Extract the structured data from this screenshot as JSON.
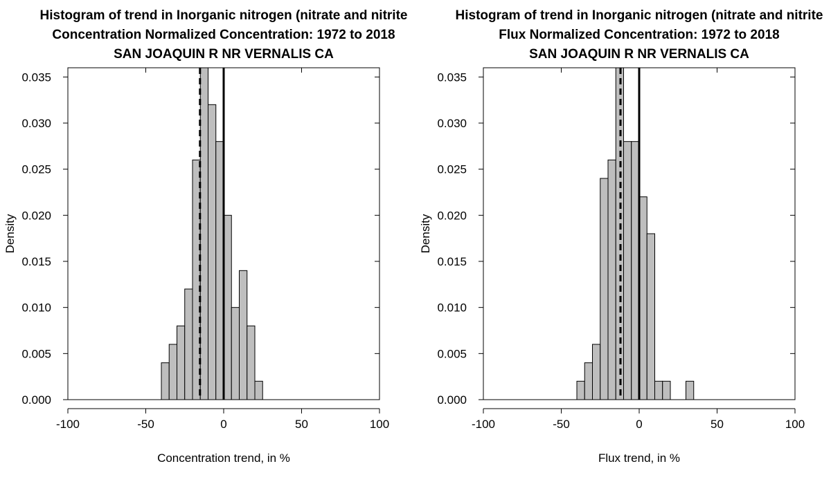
{
  "chart_data": [
    {
      "type": "bar",
      "title_lines": [
        "Histogram of trend in Inorganic nitrogen (nitrate and nitrite",
        "Concentration Normalized Concentration: 1972 to 2018",
        "SAN JOAQUIN R NR VERNALIS CA"
      ],
      "xlabel": "Concentration trend, in %",
      "ylabel": "Density",
      "xlim": [
        -100,
        100
      ],
      "ylim": [
        0,
        0.036
      ],
      "xticks": [
        "-100",
        "-50",
        "0",
        "50",
        "100"
      ],
      "yticks": [
        "0.000",
        "0.005",
        "0.010",
        "0.015",
        "0.020",
        "0.025",
        "0.030",
        "0.035"
      ],
      "bins": [
        {
          "x0": -40,
          "x1": -35,
          "density": 0.004
        },
        {
          "x0": -35,
          "x1": -30,
          "density": 0.006
        },
        {
          "x0": -30,
          "x1": -25,
          "density": 0.008
        },
        {
          "x0": -25,
          "x1": -20,
          "density": 0.012
        },
        {
          "x0": -20,
          "x1": -15,
          "density": 0.026
        },
        {
          "x0": -15,
          "x1": -10,
          "density": 0.038
        },
        {
          "x0": -10,
          "x1": -5,
          "density": 0.032
        },
        {
          "x0": -5,
          "x1": 0,
          "density": 0.028
        },
        {
          "x0": 0,
          "x1": 5,
          "density": 0.02
        },
        {
          "x0": 5,
          "x1": 10,
          "density": 0.01
        },
        {
          "x0": 10,
          "x1": 15,
          "density": 0.014
        },
        {
          "x0": 15,
          "x1": 20,
          "density": 0.008
        },
        {
          "x0": 20,
          "x1": 25,
          "density": 0.002
        }
      ],
      "median_line": -15.2,
      "zero_line": 0,
      "bar_color": "#bebebe"
    },
    {
      "type": "bar",
      "title_lines": [
        "Histogram of trend in Inorganic nitrogen (nitrate and nitrite",
        "Flux Normalized Concentration: 1972 to 2018",
        "SAN JOAQUIN R NR VERNALIS CA"
      ],
      "xlabel": "Flux trend, in %",
      "ylabel": "Density",
      "xlim": [
        -100,
        100
      ],
      "ylim": [
        0,
        0.036
      ],
      "xticks": [
        "-100",
        "-50",
        "0",
        "50",
        "100"
      ],
      "yticks": [
        "0.000",
        "0.005",
        "0.010",
        "0.015",
        "0.020",
        "0.025",
        "0.030",
        "0.035"
      ],
      "bins": [
        {
          "x0": -40,
          "x1": -35,
          "density": 0.002
        },
        {
          "x0": -35,
          "x1": -30,
          "density": 0.004
        },
        {
          "x0": -30,
          "x1": -25,
          "density": 0.006
        },
        {
          "x0": -25,
          "x1": -20,
          "density": 0.024
        },
        {
          "x0": -20,
          "x1": -15,
          "density": 0.026
        },
        {
          "x0": -15,
          "x1": -10,
          "density": 0.038
        },
        {
          "x0": -10,
          "x1": -5,
          "density": 0.028
        },
        {
          "x0": -5,
          "x1": 0,
          "density": 0.028
        },
        {
          "x0": 0,
          "x1": 5,
          "density": 0.022
        },
        {
          "x0": 5,
          "x1": 10,
          "density": 0.018
        },
        {
          "x0": 10,
          "x1": 15,
          "density": 0.002
        },
        {
          "x0": 15,
          "x1": 20,
          "density": 0.002
        },
        {
          "x0": 30,
          "x1": 35,
          "density": 0.002
        }
      ],
      "median_line": -12,
      "zero_line": 0,
      "bar_color": "#bebebe"
    }
  ]
}
